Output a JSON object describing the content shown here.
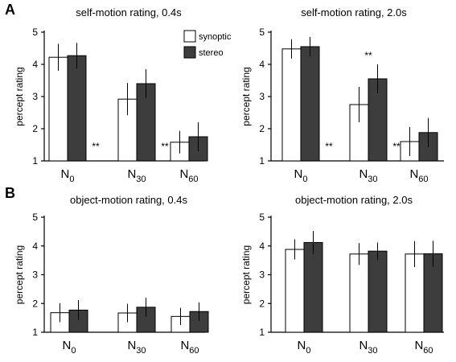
{
  "panel_labels": {
    "a": "A",
    "b": "B"
  },
  "legend": {
    "items": [
      {
        "label": "synoptic",
        "color": "#ffffff"
      },
      {
        "label": "stereo",
        "color": "#3d3d3d"
      }
    ]
  },
  "chart_data": [
    {
      "type": "bar",
      "title": "self-motion rating, 0.4s",
      "ylabel": "percept rating",
      "ylim": [
        1,
        5
      ],
      "yticks": [
        "1",
        "2",
        "3",
        "4",
        "5"
      ],
      "categories": [
        {
          "main": "N",
          "sub": "0"
        },
        {
          "main": "N",
          "sub": "30"
        },
        {
          "main": "N",
          "sub": "60"
        }
      ],
      "series": [
        {
          "name": "synoptic",
          "color": "#ffffff",
          "values": [
            4.22,
            2.92,
            1.58
          ],
          "errors": [
            0.42,
            0.5,
            0.35
          ]
        },
        {
          "name": "stereo",
          "color": "#3d3d3d",
          "values": [
            4.27,
            3.4,
            1.75
          ],
          "errors": [
            0.4,
            0.45,
            0.45
          ]
        }
      ],
      "annotations": [
        {
          "text": "**",
          "after_category": 0
        },
        {
          "text": "**",
          "after_category": 1
        }
      ]
    },
    {
      "type": "bar",
      "title": "self-motion rating, 2.0s",
      "ylabel": "percept rating",
      "ylim": [
        1,
        5
      ],
      "yticks": [
        "1",
        "2",
        "3",
        "4",
        "5"
      ],
      "categories": [
        {
          "main": "N",
          "sub": "0"
        },
        {
          "main": "N",
          "sub": "30"
        },
        {
          "main": "N",
          "sub": "60"
        }
      ],
      "series": [
        {
          "name": "synoptic",
          "color": "#ffffff",
          "values": [
            4.48,
            2.75,
            1.6
          ],
          "errors": [
            0.3,
            0.55,
            0.45
          ]
        },
        {
          "name": "stereo",
          "color": "#3d3d3d",
          "values": [
            4.55,
            3.55,
            1.88
          ],
          "errors": [
            0.3,
            0.45,
            0.45
          ]
        }
      ],
      "annotations": [
        {
          "text": "**",
          "after_category": 0
        },
        {
          "text": "**",
          "after_category": 1
        },
        {
          "text": "**",
          "above_category": 1
        }
      ]
    },
    {
      "type": "bar",
      "title": "object-motion rating, 0.4s",
      "ylabel": "percept rating",
      "ylim": [
        1,
        5
      ],
      "yticks": [
        "1",
        "2",
        "3",
        "4",
        "5"
      ],
      "categories": [
        {
          "main": "N",
          "sub": "0"
        },
        {
          "main": "N",
          "sub": "30"
        },
        {
          "main": "N",
          "sub": "60"
        }
      ],
      "series": [
        {
          "name": "synoptic",
          "color": "#ffffff",
          "values": [
            1.68,
            1.67,
            1.55
          ],
          "errors": [
            0.33,
            0.32,
            0.3
          ]
        },
        {
          "name": "stereo",
          "color": "#3d3d3d",
          "values": [
            1.77,
            1.87,
            1.72
          ],
          "errors": [
            0.35,
            0.33,
            0.32
          ]
        }
      ],
      "annotations": []
    },
    {
      "type": "bar",
      "title": "object-motion rating, 2.0s",
      "ylabel": "percept rating",
      "ylim": [
        1,
        5
      ],
      "yticks": [
        "1",
        "2",
        "3",
        "4",
        "5"
      ],
      "categories": [
        {
          "main": "N",
          "sub": "0"
        },
        {
          "main": "N",
          "sub": "30"
        },
        {
          "main": "N",
          "sub": "60"
        }
      ],
      "series": [
        {
          "name": "synoptic",
          "color": "#ffffff",
          "values": [
            3.88,
            3.72,
            3.72
          ],
          "errors": [
            0.35,
            0.38,
            0.45
          ]
        },
        {
          "name": "stereo",
          "color": "#3d3d3d",
          "values": [
            4.12,
            3.82,
            3.73
          ],
          "errors": [
            0.4,
            0.3,
            0.45
          ]
        }
      ],
      "annotations": []
    }
  ]
}
